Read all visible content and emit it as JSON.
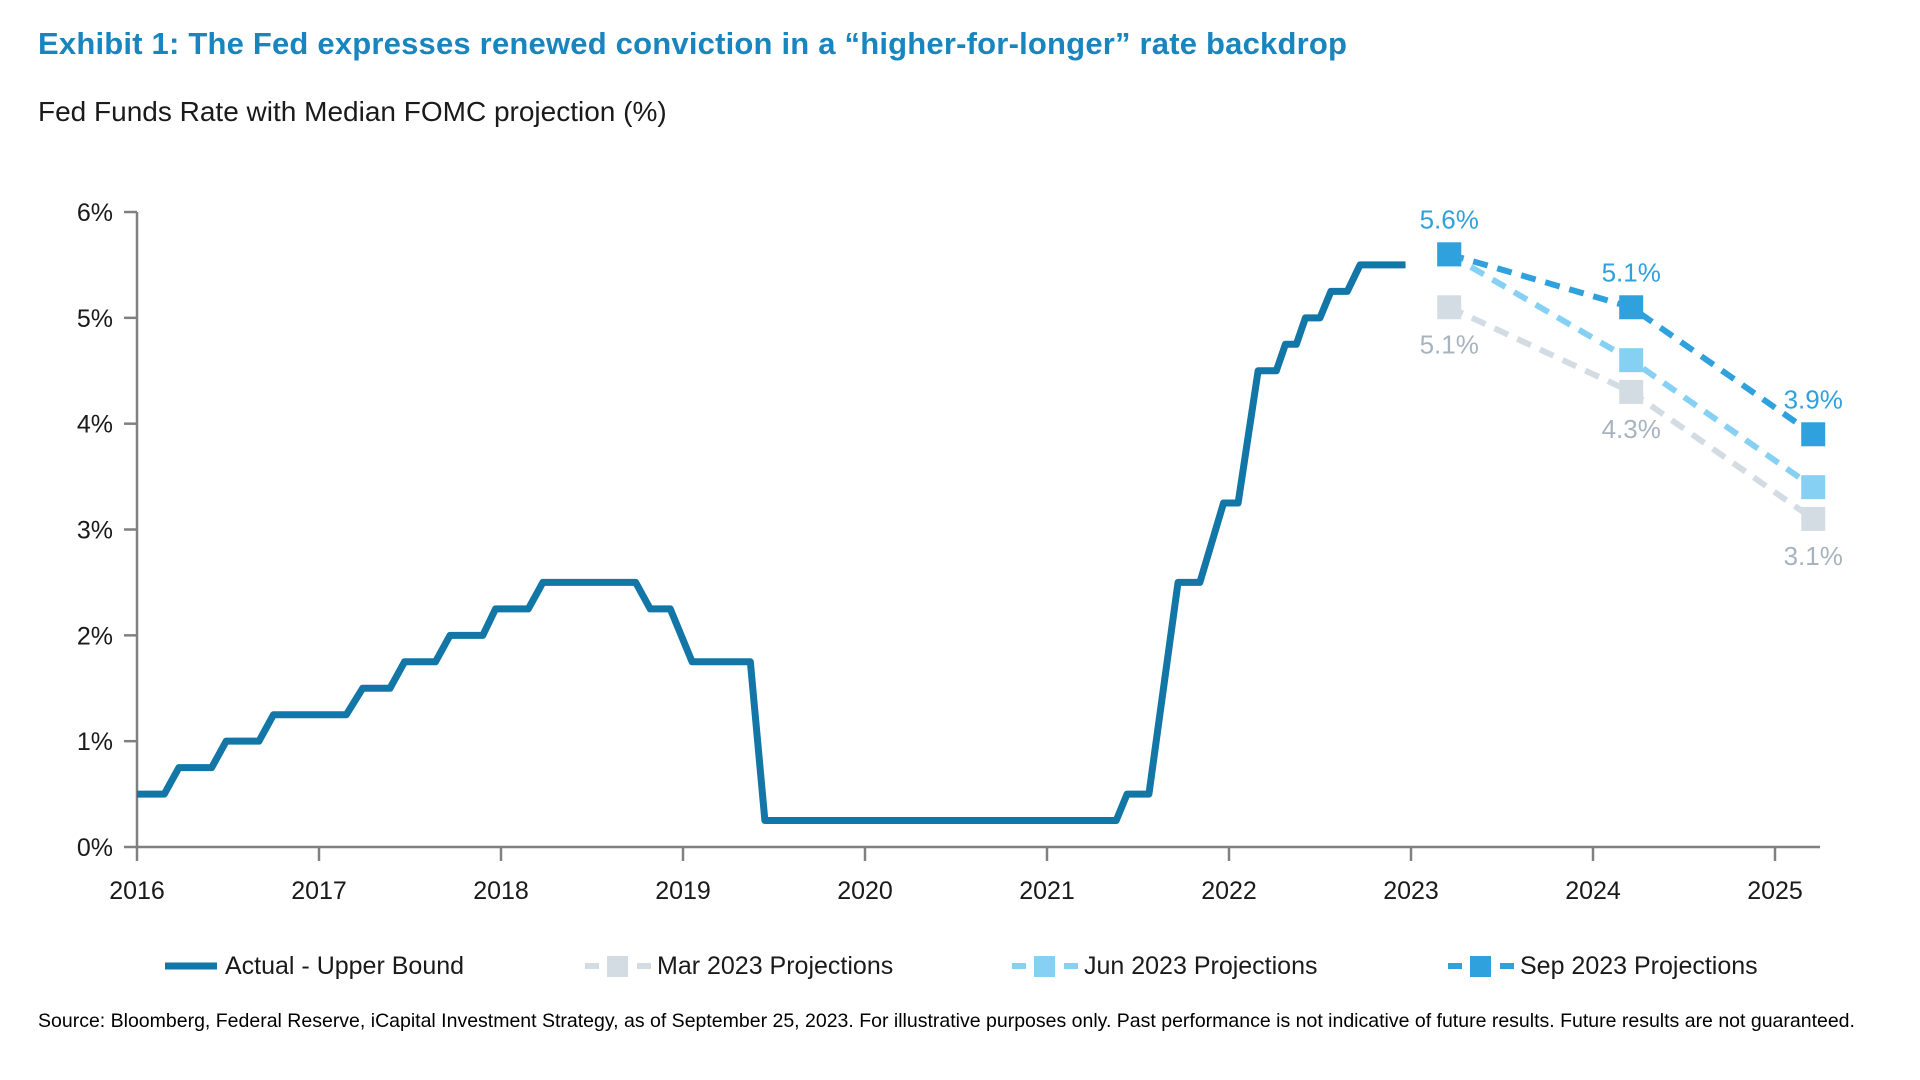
{
  "page": {
    "title": "Exhibit 1: The Fed expresses renewed conviction in a “higher-for-longer” rate backdrop",
    "subtitle": "Fed Funds Rate with Median FOMC projection (%)",
    "source": "Source: Bloomberg, Federal Reserve, iCapital Investment Strategy, as of September 25, 2023. For illustrative purposes only. Past performance is not indicative of future results. Future results are not guaranteed.",
    "colors": {
      "title_blue": "#1985BF",
      "actual_line": "#1276A6",
      "sep_projection": "#2FA2DD",
      "jun_projection": "#86D1F3",
      "mar_projection": "#D4DCE3",
      "label_blue": "#2FA2DD",
      "label_gray": "#A7B4C0",
      "axis_gray": "#808080",
      "text_dark": "#1a1a1a"
    }
  },
  "chart_data": {
    "type": "line",
    "title": "Fed Funds Rate with Median FOMC projection (%)",
    "xlabel": "",
    "ylabel": "",
    "ylim": [
      0,
      6
    ],
    "y_ticks": [
      "0%",
      "1%",
      "2%",
      "3%",
      "4%",
      "5%",
      "6%"
    ],
    "x_ticks": [
      2016,
      2017,
      2018,
      2019,
      2020,
      2021,
      2022,
      2023,
      2024,
      2025
    ],
    "grid": false,
    "legend_position": "bottom",
    "series": [
      {
        "id": "actual",
        "name": "Actual - Upper Bound",
        "style": "solid",
        "color": "#1276A6",
        "points": [
          [
            2016.0,
            0.5
          ],
          [
            2016.15,
            0.5
          ],
          [
            2016.23,
            0.75
          ],
          [
            2016.41,
            0.75
          ],
          [
            2016.49,
            1.0
          ],
          [
            2016.67,
            1.0
          ],
          [
            2016.75,
            1.25
          ],
          [
            2017.15,
            1.25
          ],
          [
            2017.24,
            1.5
          ],
          [
            2017.39,
            1.5
          ],
          [
            2017.47,
            1.75
          ],
          [
            2017.64,
            1.75
          ],
          [
            2017.72,
            2.0
          ],
          [
            2017.9,
            2.0
          ],
          [
            2017.97,
            2.25
          ],
          [
            2018.15,
            2.25
          ],
          [
            2018.23,
            2.5
          ],
          [
            2018.74,
            2.5
          ],
          [
            2018.82,
            2.25
          ],
          [
            2018.93,
            2.25
          ],
          [
            2019.05,
            1.75
          ],
          [
            2019.37,
            1.75
          ],
          [
            2019.45,
            0.25
          ],
          [
            2021.38,
            0.25
          ],
          [
            2021.44,
            0.5
          ],
          [
            2021.56,
            0.5
          ],
          [
            2021.72,
            2.5
          ],
          [
            2021.84,
            2.5
          ],
          [
            2021.97,
            3.25
          ],
          [
            2022.05,
            3.25
          ],
          [
            2022.16,
            4.5
          ],
          [
            2022.26,
            4.5
          ],
          [
            2022.31,
            4.75
          ],
          [
            2022.37,
            4.75
          ],
          [
            2022.42,
            5.0
          ],
          [
            2022.5,
            5.0
          ],
          [
            2022.56,
            5.25
          ],
          [
            2022.65,
            5.25
          ],
          [
            2022.72,
            5.5
          ],
          [
            2022.97,
            5.5
          ]
        ]
      },
      {
        "id": "mar2023",
        "name": "Mar 2023 Projections",
        "style": "dashed",
        "marker": "square",
        "color": "#D4DCE3",
        "x_offset": 0.21,
        "points": [
          [
            2023,
            5.1
          ],
          [
            2024,
            4.3
          ],
          [
            2025,
            3.1
          ]
        ]
      },
      {
        "id": "jun2023",
        "name": "Jun 2023 Projections",
        "style": "dashed",
        "marker": "square",
        "color": "#86D1F3",
        "x_offset": 0.21,
        "points": [
          [
            2023,
            5.6
          ],
          [
            2024,
            4.6
          ],
          [
            2025,
            3.4
          ]
        ]
      },
      {
        "id": "sep2023",
        "name": "Sep 2023 Projections",
        "style": "dashed",
        "marker": "square",
        "color": "#2FA2DD",
        "x_offset": 0.21,
        "points": [
          [
            2023,
            5.6
          ],
          [
            2024,
            5.1
          ],
          [
            2025,
            3.9
          ]
        ]
      }
    ],
    "point_labels": [
      {
        "text": "5.6%",
        "x": 2023,
        "y": 5.6,
        "placement": "above",
        "color": "#2FA2DD"
      },
      {
        "text": "5.1%",
        "x": 2023,
        "y": 5.1,
        "placement": "below",
        "color": "#A7B4C0"
      },
      {
        "text": "5.1%",
        "x": 2024,
        "y": 5.1,
        "placement": "above",
        "color": "#2FA2DD"
      },
      {
        "text": "4.3%",
        "x": 2024,
        "y": 4.3,
        "placement": "below",
        "color": "#A7B4C0"
      },
      {
        "text": "3.9%",
        "x": 2025,
        "y": 3.9,
        "placement": "above",
        "color": "#2FA2DD"
      },
      {
        "text": "3.1%",
        "x": 2025,
        "y": 3.1,
        "placement": "below",
        "color": "#A7B4C0"
      }
    ],
    "legend": [
      {
        "label": "Actual - Upper Bound",
        "style": "solid",
        "color": "#1276A6"
      },
      {
        "label": "Mar 2023 Projections",
        "style": "dashed",
        "color": "#D4DCE3"
      },
      {
        "label": "Jun 2023 Projections",
        "style": "dashed",
        "color": "#86D1F3"
      },
      {
        "label": "Sep 2023 Projections",
        "style": "dashed",
        "color": "#2FA2DD"
      }
    ]
  }
}
